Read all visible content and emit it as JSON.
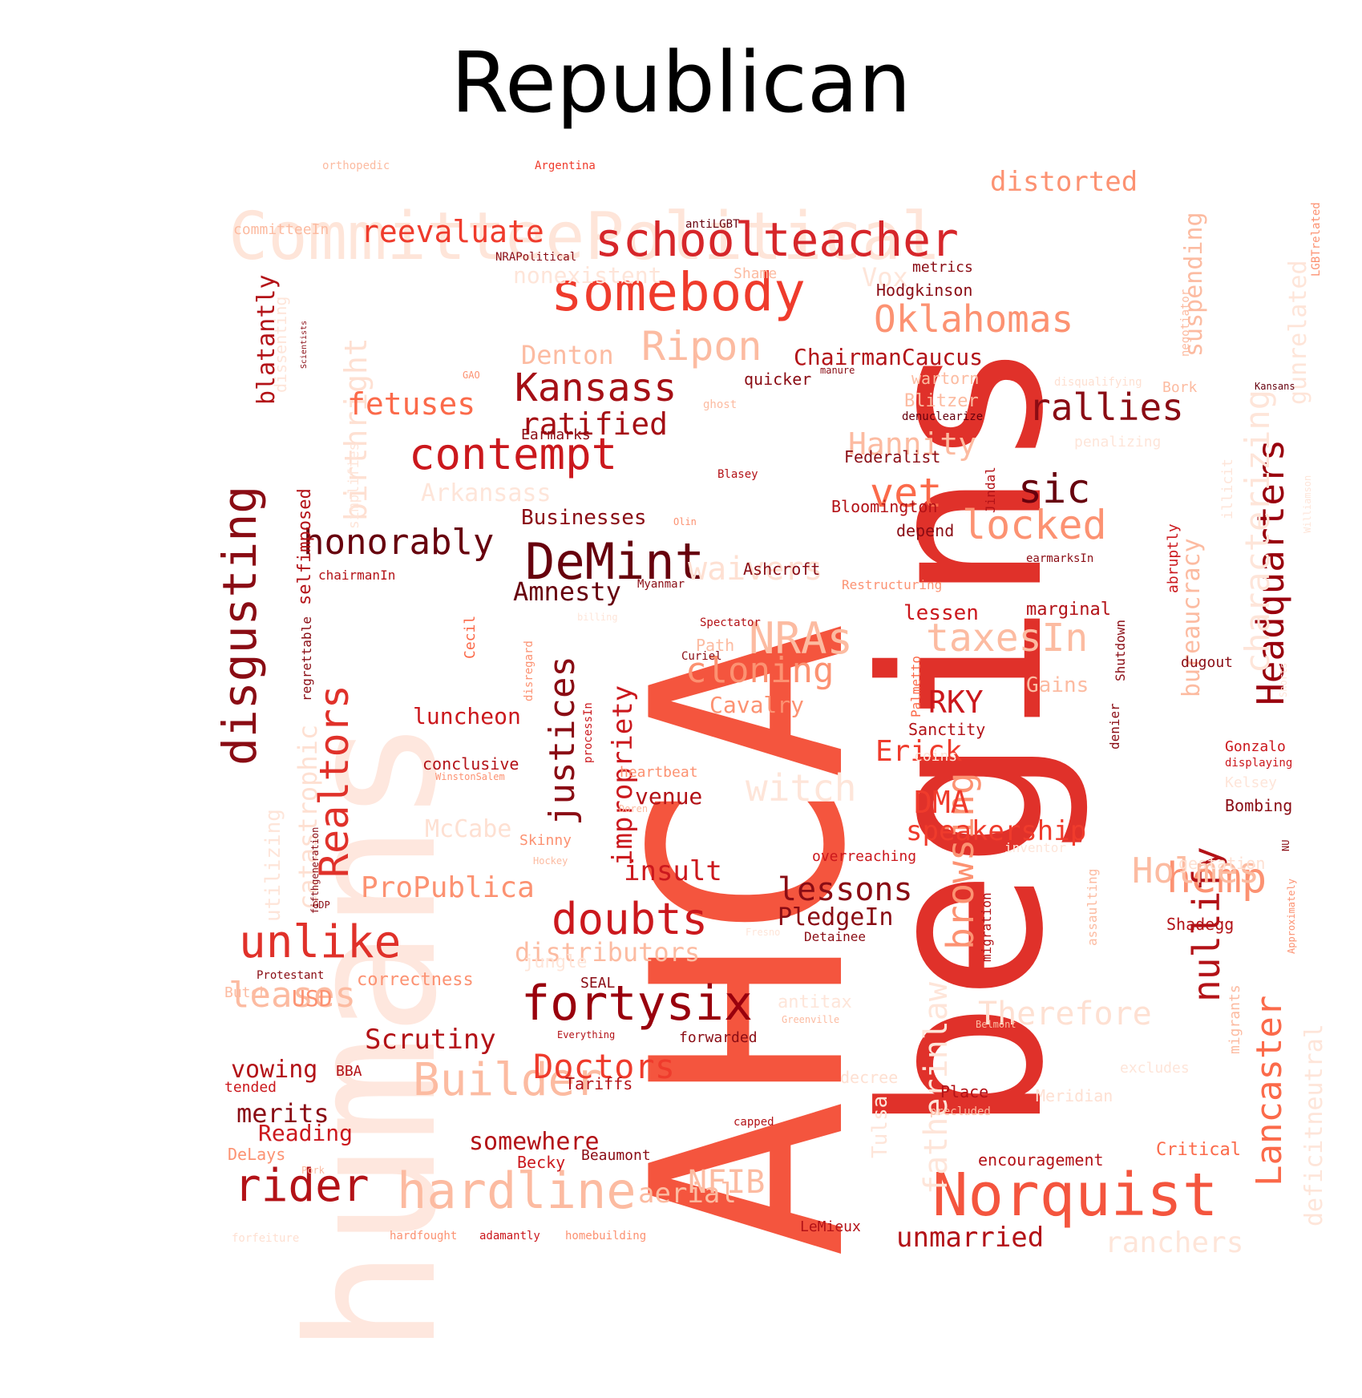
{
  "title": "Republican",
  "colors": {
    "c1": "#fee5d9",
    "c2": "#fcbba1",
    "c3": "#fc9272",
    "c4": "#fb6a4a",
    "c5": "#ef3b2c",
    "c6": "#cb181d",
    "c7": "#99000d",
    "c8": "#67000d"
  },
  "words": [
    {
      "t": "AHCA",
      "c": "#f4553e"
    },
    {
      "t": "begins",
      "c": "#e0312a"
    },
    {
      "t": "humans",
      "c": "#fee7de"
    },
    {
      "t": "CommitteePolitical",
      "c": "#fee5d9"
    },
    {
      "t": "Norquist",
      "c": "#f4553e"
    },
    {
      "t": "somebody",
      "c": "#ef3b2c"
    },
    {
      "t": "schoolteacher",
      "c": "#d6262a"
    },
    {
      "t": "DeMint",
      "c": "#67000d"
    },
    {
      "t": "disgusting",
      "c": "#8a0c14"
    },
    {
      "t": "Realtors",
      "c": "#e0312a"
    },
    {
      "t": "Headquarters",
      "c": "#99000d"
    },
    {
      "t": "Lancaster",
      "c": "#fb6a4a"
    },
    {
      "t": "hardline",
      "c": "#fcbba1"
    },
    {
      "t": "Builder",
      "c": "#fcbba1"
    },
    {
      "t": "fortysix",
      "c": "#99000d"
    },
    {
      "t": "Kansass",
      "c": "#a50f15"
    },
    {
      "t": "Oklahomas",
      "c": "#fc9272"
    },
    {
      "t": "contempt",
      "c": "#cb181d"
    },
    {
      "t": "Ripon",
      "c": "#fcbba1"
    },
    {
      "t": "unlike",
      "c": "#e0312a"
    },
    {
      "t": "rider",
      "c": "#b31217"
    },
    {
      "t": "justices",
      "c": "#8a0c14"
    },
    {
      "t": "doubts",
      "c": "#cb181d"
    },
    {
      "t": "browsing",
      "c": "#fc9272"
    },
    {
      "t": "hemp",
      "c": "#fc9272"
    },
    {
      "t": "nullify",
      "c": "#b31217"
    },
    {
      "t": "characterizing",
      "c": "#fee5d9"
    },
    {
      "t": "rallies",
      "c": "#8a0c14"
    },
    {
      "t": "locked",
      "c": "#fc9272"
    },
    {
      "t": "sic",
      "c": "#67000d"
    },
    {
      "t": "vet",
      "c": "#fb6a4a"
    },
    {
      "t": "NRAs",
      "c": "#fcbba1"
    },
    {
      "t": "waivers",
      "c": "#fee0d2"
    },
    {
      "t": "cloning",
      "c": "#fc9272"
    },
    {
      "t": "taxesIn",
      "c": "#fcbba1"
    },
    {
      "t": "Holmes",
      "c": "#fcbba1"
    },
    {
      "t": "leases",
      "c": "#fcbba1"
    },
    {
      "t": "honorably",
      "c": "#67000d"
    },
    {
      "t": "birthright",
      "c": "#fee0d2"
    },
    {
      "t": "reevaluate",
      "c": "#ef3b2c"
    },
    {
      "t": "distorted",
      "c": "#fc9272"
    },
    {
      "t": "fetuses",
      "c": "#fb6a4a"
    },
    {
      "t": "ratified",
      "c": "#a50f15"
    },
    {
      "t": "Hannity",
      "c": "#fcbba1"
    },
    {
      "t": "witch",
      "c": "#fee5d9"
    },
    {
      "t": "Doctors",
      "c": "#ef3b2c"
    },
    {
      "t": "NFIB",
      "c": "#fcbba1"
    },
    {
      "t": "ProPublica",
      "c": "#fc9272"
    },
    {
      "t": "Therefore",
      "c": "#fee0d2"
    },
    {
      "t": "fatherinlaw",
      "c": "#fee5d9"
    },
    {
      "t": "deficitneutral",
      "c": "#fee5d9"
    },
    {
      "t": "blatantly",
      "c": "#b31217"
    },
    {
      "t": "Erick",
      "c": "#ef3b2c"
    },
    {
      "t": "DMA",
      "c": "#ef3b2c"
    },
    {
      "t": "speakership",
      "c": "#ef3b2c"
    },
    {
      "t": "lessons",
      "c": "#8a0c14"
    },
    {
      "t": "impropriety",
      "c": "#cb181d"
    },
    {
      "t": "Amnesty",
      "c": "#67000d"
    },
    {
      "t": "Scrutiny",
      "c": "#b31217"
    },
    {
      "t": "RKY",
      "c": "#cb181d"
    },
    {
      "t": "unmarried",
      "c": "#b31217"
    },
    {
      "t": "Denton",
      "c": "#fcbba1"
    },
    {
      "t": "Arkansass",
      "c": "#fee5d9"
    },
    {
      "t": "bureaucracy",
      "c": "#fcbba1"
    },
    {
      "t": "suspending",
      "c": "#fcbba1"
    },
    {
      "t": "gunrelated",
      "c": "#fee5d9"
    },
    {
      "t": "insult",
      "c": "#cb181d"
    },
    {
      "t": "aerial",
      "c": "#fcbba1"
    },
    {
      "t": "distributors",
      "c": "#fcbba1"
    },
    {
      "t": "McCabe",
      "c": "#fee0d2"
    },
    {
      "t": "selfimposed",
      "c": "#b31217"
    },
    {
      "t": "catastrophic",
      "c": "#fee0d2"
    },
    {
      "t": "somewhere",
      "c": "#b31217"
    },
    {
      "t": "ranchers",
      "c": "#fee5d9"
    },
    {
      "t": "merits",
      "c": "#8a0c14"
    },
    {
      "t": "Reading",
      "c": "#cb181d"
    },
    {
      "t": "vowing",
      "c": "#b31217"
    },
    {
      "t": "USD",
      "c": "#fc9272"
    },
    {
      "t": "PledgeIn",
      "c": "#8a0c14"
    },
    {
      "t": "ChairmanCaucus",
      "c": "#b31217"
    },
    {
      "t": "Businesses",
      "c": "#8a0c14"
    },
    {
      "t": "luncheon",
      "c": "#cb181d"
    },
    {
      "t": "Cavalry",
      "c": "#fc9272"
    },
    {
      "t": "Vox",
      "c": "#fee5d9"
    },
    {
      "t": "nonexistent",
      "c": "#fee5d9"
    },
    {
      "t": "venue",
      "c": "#b31217"
    },
    {
      "t": "correctness",
      "c": "#fc9272"
    },
    {
      "t": "Tulsa",
      "c": "#fee5d9"
    },
    {
      "t": "utilizing",
      "c": "#fee5d9"
    },
    {
      "t": "Gains",
      "c": "#fcbba1"
    },
    {
      "t": "Hodgkinson",
      "c": "#8a0c14"
    },
    {
      "t": "Federalist",
      "c": "#8a0c14"
    },
    {
      "t": "Bloomington",
      "c": "#b31217"
    },
    {
      "t": "depend",
      "c": "#8a0c14"
    },
    {
      "t": "Ashcroft",
      "c": "#8a0c14"
    },
    {
      "t": "quicker",
      "c": "#8a0c14"
    },
    {
      "t": "Blitzer",
      "c": "#fcbba1"
    },
    {
      "t": "wartorn",
      "c": "#fcbba1"
    },
    {
      "t": "metrics",
      "c": "#8a0c14"
    },
    {
      "t": "Shame",
      "c": "#fcbba1"
    },
    {
      "t": "Earmarks",
      "c": "#8a0c14"
    },
    {
      "t": "Sanctity",
      "c": "#b31217"
    },
    {
      "t": "marginal",
      "c": "#b31217"
    },
    {
      "t": "lessen",
      "c": "#cb181d"
    },
    {
      "t": "encouragement",
      "c": "#b31217"
    },
    {
      "t": "Meridian",
      "c": "#fee0d2"
    },
    {
      "t": "Place",
      "c": "#b31217"
    },
    {
      "t": "Critical",
      "c": "#fb6a4a"
    },
    {
      "t": "Shadegg",
      "c": "#b31217"
    },
    {
      "t": "Bombing",
      "c": "#8a0c14"
    },
    {
      "t": "Gonzalo",
      "c": "#cb181d"
    },
    {
      "t": "gestation",
      "c": "#fee0d2"
    },
    {
      "t": "Kelsey",
      "c": "#fee5d9"
    },
    {
      "t": "dugout",
      "c": "#8a0c14"
    },
    {
      "t": "Tariffs",
      "c": "#b31217"
    },
    {
      "t": "Beaumont",
      "c": "#8a0c14"
    },
    {
      "t": "Becky",
      "c": "#cb181d"
    },
    {
      "t": "LeMieux",
      "c": "#b31217"
    },
    {
      "t": "forwarded",
      "c": "#8a0c14"
    },
    {
      "t": "Detainee",
      "c": "#8a0c14"
    },
    {
      "t": "overreaching",
      "c": "#cb181d"
    },
    {
      "t": "Skinny",
      "c": "#fc9272"
    },
    {
      "t": "heartbeat",
      "c": "#fc9272"
    },
    {
      "t": "conclusive",
      "c": "#b31217"
    },
    {
      "t": "tended",
      "c": "#cb181d"
    },
    {
      "t": "DeLays",
      "c": "#fc9272"
    },
    {
      "t": "Butch",
      "c": "#fcbba1"
    },
    {
      "t": "SEAL",
      "c": "#8a0c14"
    },
    {
      "t": "jungle",
      "c": "#fee5d9"
    },
    {
      "t": "decree",
      "c": "#fee0d2"
    },
    {
      "t": "excludes",
      "c": "#fee5d9"
    },
    {
      "t": "coins",
      "c": "#fee5d9"
    },
    {
      "t": "antitax",
      "c": "#fee5d9"
    },
    {
      "t": "Bork",
      "c": "#fcbba1"
    },
    {
      "t": "abruptly",
      "c": "#cb181d"
    },
    {
      "t": "illicit",
      "c": "#fee5d9"
    },
    {
      "t": "Jindal",
      "c": "#b31217"
    },
    {
      "t": "migration",
      "c": "#b31217"
    },
    {
      "t": "assaulting",
      "c": "#fcbba1"
    },
    {
      "t": "denier",
      "c": "#8a0c14"
    },
    {
      "t": "Shutdown",
      "c": "#8a0c14"
    },
    {
      "t": "Palmetto",
      "c": "#fb6a4a"
    },
    {
      "t": "Cecil",
      "c": "#fb6a4a"
    },
    {
      "t": "disregard",
      "c": "#fc9272"
    },
    {
      "t": "processIn",
      "c": "#cb181d"
    },
    {
      "t": "regrettable",
      "c": "#8a0c14"
    },
    {
      "t": "dissenting",
      "c": "#fee5d9"
    },
    {
      "t": "simplifies",
      "c": "#fee5d9"
    },
    {
      "t": "migrants",
      "c": "#fcbba1"
    },
    {
      "t": "penalizing",
      "c": "#fee5d9"
    },
    {
      "t": "Restructuring",
      "c": "#fc9272"
    },
    {
      "t": "Spectator",
      "c": "#b31217"
    },
    {
      "t": "Curiel",
      "c": "#8a0c14"
    },
    {
      "t": "Path",
      "c": "#fcbba1"
    },
    {
      "t": "Myanmar",
      "c": "#8a0c14"
    },
    {
      "t": "chairmanIn",
      "c": "#b31217"
    },
    {
      "t": "committeeIn",
      "c": "#fcbba1"
    },
    {
      "t": "NRAPolitical",
      "c": "#8a0c14"
    },
    {
      "t": "antiLGBT",
      "c": "#67000d"
    },
    {
      "t": "Argentina",
      "c": "#ef3b2c"
    },
    {
      "t": "orthopedic",
      "c": "#fcbba1"
    },
    {
      "t": "LGBTrelated",
      "c": "#fc9272"
    },
    {
      "t": "negotiator",
      "c": "#fcbba1"
    },
    {
      "t": "Kansans",
      "c": "#67000d"
    },
    {
      "t": "disqualifying",
      "c": "#fee0d2"
    },
    {
      "t": "denuclearize",
      "c": "#67000d"
    },
    {
      "t": "manure",
      "c": "#8a0c14"
    },
    {
      "t": "ghost",
      "c": "#fcbba1"
    },
    {
      "t": "GAO",
      "c": "#fc9272"
    },
    {
      "t": "Scientists",
      "c": "#8a0c14"
    },
    {
      "t": "Blasey",
      "c": "#b31217"
    },
    {
      "t": "Olin",
      "c": "#fc9272"
    },
    {
      "t": "earmarksIn",
      "c": "#8a0c14"
    },
    {
      "t": "Williamson",
      "c": "#fee5d9"
    },
    {
      "t": "displaying",
      "c": "#cb181d"
    },
    {
      "t": "billing",
      "c": "#fee5d9"
    },
    {
      "t": "WinstonSalem",
      "c": "#fc9272"
    },
    {
      "t": "Doren",
      "c": "#fcbba1"
    },
    {
      "t": "Hockey",
      "c": "#fcbba1"
    },
    {
      "t": "fifthgeneration",
      "c": "#8a0c14"
    },
    {
      "t": "GDP",
      "c": "#8a0c14"
    },
    {
      "t": "Protestant",
      "c": "#8a0c14"
    },
    {
      "t": "Everything",
      "c": "#b31217"
    },
    {
      "t": "Greenville",
      "c": "#fcbba1"
    },
    {
      "t": "Belmont",
      "c": "#fcbba1"
    },
    {
      "t": "BBA",
      "c": "#b31217"
    },
    {
      "t": "capped",
      "c": "#b31217"
    },
    {
      "t": "precluded",
      "c": "#fcbba1"
    },
    {
      "t": "Pork",
      "c": "#fcbba1"
    },
    {
      "t": "forfeiture",
      "c": "#fee0d2"
    },
    {
      "t": "hardfought",
      "c": "#fc9272"
    },
    {
      "t": "adamantly",
      "c": "#cb181d"
    },
    {
      "t": "homebuilding",
      "c": "#fc9272"
    },
    {
      "t": "Approximately",
      "c": "#fc9272"
    },
    {
      "t": "NU",
      "c": "#8a0c14"
    },
    {
      "t": "inventor",
      "c": "#fee5d9"
    },
    {
      "t": "Shorts",
      "c": "#fee5d9"
    },
    {
      "t": "Fresno",
      "c": "#fee5d9"
    }
  ]
}
